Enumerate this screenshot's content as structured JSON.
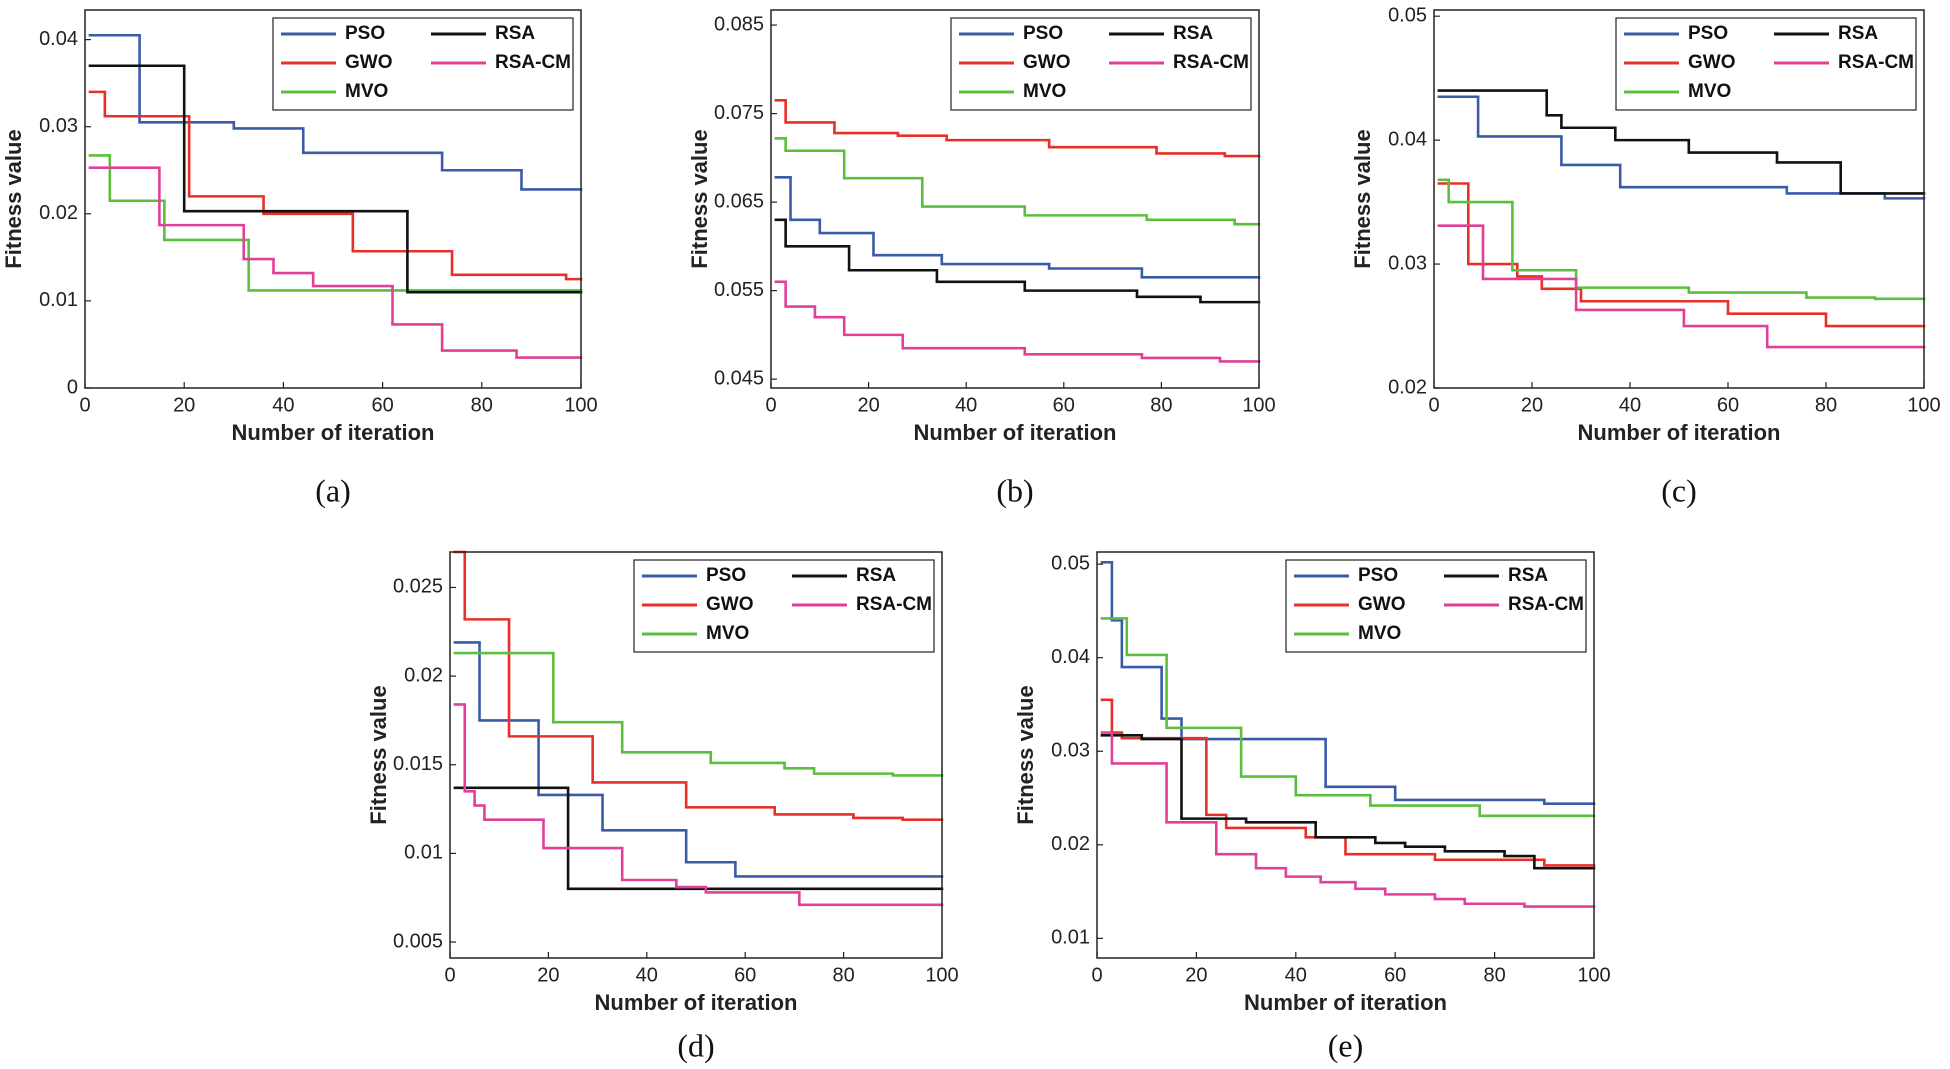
{
  "chart_data": [
    {
      "type": "line",
      "caption": "(a)",
      "xlabel": "Number of iteration",
      "ylabel": "Fitness value",
      "drawstyle": "steps-post",
      "legend": "upper right",
      "xlim": [
        0,
        100
      ],
      "ylim": [
        0,
        0.0434
      ],
      "xticks": [
        0,
        20,
        40,
        60,
        80,
        100
      ],
      "yticks": [
        0,
        0.01,
        0.02,
        0.03,
        0.04
      ],
      "series": [
        {
          "name": "PSO",
          "color": "#3a5ba8",
          "x": [
            1,
            11,
            30,
            44,
            72,
            88
          ],
          "values": [
            0.0405,
            0.0305,
            0.0298,
            0.027,
            0.025,
            0.0228
          ]
        },
        {
          "name": "GWO",
          "color": "#e8302a",
          "x": [
            1,
            4,
            21,
            36,
            54,
            74,
            97
          ],
          "values": [
            0.034,
            0.0312,
            0.022,
            0.02,
            0.0157,
            0.013,
            0.0125
          ]
        },
        {
          "name": "MVO",
          "color": "#5bbf3e",
          "x": [
            1,
            5,
            16,
            33
          ],
          "values": [
            0.0267,
            0.0215,
            0.017,
            0.0112
          ]
        },
        {
          "name": "RSA",
          "color": "#111111",
          "x": [
            1,
            20,
            65
          ],
          "values": [
            0.037,
            0.0203,
            0.011
          ]
        },
        {
          "name": "RSA-CM",
          "color": "#e0409a",
          "x": [
            1,
            15,
            32,
            38,
            46,
            62,
            72,
            87
          ],
          "values": [
            0.0253,
            0.0187,
            0.0148,
            0.0132,
            0.0117,
            0.0073,
            0.0043,
            0.0035
          ]
        }
      ]
    },
    {
      "type": "line",
      "caption": "(b)",
      "xlabel": "Number of iteration",
      "ylabel": "Fitness value",
      "drawstyle": "steps-post",
      "legend": "upper right",
      "xlim": [
        0,
        100
      ],
      "ylim": [
        0.044,
        0.0867
      ],
      "xticks": [
        0,
        20,
        40,
        60,
        80,
        100
      ],
      "yticks": [
        0.045,
        0.055,
        0.065,
        0.075,
        0.085
      ],
      "series": [
        {
          "name": "PSO",
          "color": "#3a5ba8",
          "x": [
            1,
            4,
            10,
            21,
            35,
            57,
            76
          ],
          "values": [
            0.0678,
            0.063,
            0.0615,
            0.059,
            0.058,
            0.0575,
            0.0565
          ]
        },
        {
          "name": "GWO",
          "color": "#e8302a",
          "x": [
            1,
            3,
            13,
            26,
            36,
            57,
            79,
            93
          ],
          "values": [
            0.0765,
            0.074,
            0.0728,
            0.0725,
            0.072,
            0.0712,
            0.0705,
            0.0702
          ]
        },
        {
          "name": "MVO",
          "color": "#5bbf3e",
          "x": [
            1,
            3,
            15,
            31,
            52,
            77,
            95
          ],
          "values": [
            0.0722,
            0.0708,
            0.0677,
            0.0645,
            0.0635,
            0.063,
            0.0625
          ]
        },
        {
          "name": "RSA",
          "color": "#111111",
          "x": [
            1,
            3,
            16,
            34,
            52,
            75,
            88
          ],
          "values": [
            0.063,
            0.06,
            0.0573,
            0.056,
            0.055,
            0.0543,
            0.0537
          ]
        },
        {
          "name": "RSA-CM",
          "color": "#e0409a",
          "x": [
            1,
            3,
            9,
            15,
            27,
            52,
            76,
            92
          ],
          "values": [
            0.056,
            0.0532,
            0.052,
            0.05,
            0.0485,
            0.0478,
            0.0474,
            0.047
          ]
        }
      ]
    },
    {
      "type": "line",
      "caption": "(c)",
      "xlabel": "Number of iteration",
      "ylabel": "Fitness value",
      "drawstyle": "steps-post",
      "legend": "upper right",
      "xlim": [
        0,
        100
      ],
      "ylim": [
        0.02,
        0.0505
      ],
      "xticks": [
        0,
        20,
        40,
        60,
        80,
        100
      ],
      "yticks": [
        0.02,
        0.03,
        0.04,
        0.05
      ],
      "series": [
        {
          "name": "PSO",
          "color": "#3a5ba8",
          "x": [
            1,
            9,
            26,
            38,
            72,
            92
          ],
          "values": [
            0.0435,
            0.0403,
            0.038,
            0.0362,
            0.0357,
            0.0353
          ]
        },
        {
          "name": "GWO",
          "color": "#e8302a",
          "x": [
            1,
            7,
            17,
            22,
            30,
            60,
            80
          ],
          "values": [
            0.0365,
            0.03,
            0.029,
            0.028,
            0.027,
            0.026,
            0.025
          ]
        },
        {
          "name": "MVO",
          "color": "#5bbf3e",
          "x": [
            1,
            3,
            16,
            29,
            52,
            76,
            90
          ],
          "values": [
            0.0368,
            0.035,
            0.0295,
            0.0281,
            0.0277,
            0.0273,
            0.0272
          ]
        },
        {
          "name": "RSA",
          "color": "#111111",
          "x": [
            1,
            23,
            26,
            37,
            52,
            70,
            83
          ],
          "values": [
            0.044,
            0.042,
            0.041,
            0.04,
            0.039,
            0.0382,
            0.0357
          ]
        },
        {
          "name": "RSA-CM",
          "color": "#e0409a",
          "x": [
            1,
            10,
            29,
            51,
            68
          ],
          "values": [
            0.0331,
            0.0288,
            0.0263,
            0.025,
            0.0233
          ]
        }
      ]
    },
    {
      "type": "line",
      "caption": "(d)",
      "xlabel": "Number of iteration",
      "ylabel": "Fitness value",
      "drawstyle": "steps-post",
      "legend": "upper right",
      "xlim": [
        0,
        100
      ],
      "ylim": [
        0.0041,
        0.027
      ],
      "xticks": [
        0,
        20,
        40,
        60,
        80,
        100
      ],
      "yticks": [
        0.005,
        0.01,
        0.015,
        0.02,
        0.025
      ],
      "series": [
        {
          "name": "PSO",
          "color": "#3a5ba8",
          "x": [
            1,
            6,
            18,
            31,
            48,
            58
          ],
          "values": [
            0.0219,
            0.0175,
            0.0133,
            0.0113,
            0.0095,
            0.0087
          ]
        },
        {
          "name": "GWO",
          "color": "#e8302a",
          "x": [
            1,
            3,
            12,
            29,
            48,
            66,
            82,
            92
          ],
          "values": [
            0.027,
            0.0232,
            0.0166,
            0.014,
            0.0126,
            0.0122,
            0.012,
            0.0119
          ]
        },
        {
          "name": "MVO",
          "color": "#5bbf3e",
          "x": [
            1,
            21,
            35,
            53,
            68,
            74,
            90
          ],
          "values": [
            0.0213,
            0.0174,
            0.0157,
            0.0151,
            0.0148,
            0.0145,
            0.0144
          ]
        },
        {
          "name": "RSA",
          "color": "#111111",
          "x": [
            1,
            24
          ],
          "values": [
            0.0137,
            0.008
          ]
        },
        {
          "name": "RSA-CM",
          "color": "#e0409a",
          "x": [
            1,
            3,
            5,
            7,
            19,
            35,
            46,
            52,
            71
          ],
          "values": [
            0.0184,
            0.0135,
            0.0127,
            0.0119,
            0.0103,
            0.0085,
            0.0081,
            0.0078,
            0.0071
          ]
        }
      ]
    },
    {
      "type": "line",
      "caption": "(e)",
      "xlabel": "Number of iteration",
      "ylabel": "Fitness value",
      "drawstyle": "steps-post",
      "legend": "upper right",
      "xlim": [
        0,
        100
      ],
      "ylim": [
        0.0079,
        0.0513
      ],
      "xticks": [
        0,
        20,
        40,
        60,
        80,
        100
      ],
      "yticks": [
        0.01,
        0.02,
        0.03,
        0.04,
        0.05
      ],
      "series": [
        {
          "name": "PSO",
          "color": "#3a5ba8",
          "x": [
            1,
            3,
            5,
            13,
            17,
            46,
            60,
            90
          ],
          "values": [
            0.0502,
            0.044,
            0.039,
            0.0335,
            0.0313,
            0.0262,
            0.0248,
            0.0244
          ]
        },
        {
          "name": "GWO",
          "color": "#e8302a",
          "x": [
            1,
            3,
            5,
            22,
            26,
            42,
            50,
            68,
            90
          ],
          "values": [
            0.0355,
            0.032,
            0.0314,
            0.0232,
            0.0218,
            0.0208,
            0.019,
            0.0184,
            0.0178
          ]
        },
        {
          "name": "MVO",
          "color": "#5bbf3e",
          "x": [
            1,
            6,
            14,
            29,
            40,
            55,
            77
          ],
          "values": [
            0.0442,
            0.0403,
            0.0325,
            0.0273,
            0.0253,
            0.0242,
            0.0231
          ]
        },
        {
          "name": "RSA",
          "color": "#111111",
          "x": [
            1,
            9,
            17,
            30,
            44,
            56,
            62,
            70,
            82,
            88
          ],
          "values": [
            0.0317,
            0.0313,
            0.0228,
            0.0224,
            0.0208,
            0.0202,
            0.0198,
            0.0193,
            0.0188,
            0.0175
          ]
        },
        {
          "name": "RSA-CM",
          "color": "#e0409a",
          "x": [
            1,
            3,
            14,
            24,
            32,
            38,
            45,
            52,
            58,
            68,
            74,
            86
          ],
          "values": [
            0.032,
            0.0287,
            0.0224,
            0.019,
            0.0175,
            0.0166,
            0.016,
            0.0153,
            0.0147,
            0.0142,
            0.0137,
            0.0134
          ]
        }
      ]
    }
  ]
}
